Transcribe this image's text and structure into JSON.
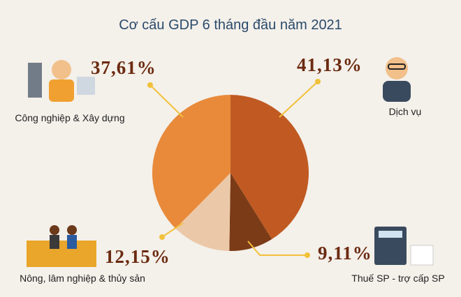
{
  "chart_data": {
    "type": "pie",
    "title": "Cơ cấu GDP 6 tháng đầu năm 2021",
    "categories": [
      "Dịch vụ",
      "Thuế SP - trợ cấp SP",
      "Nông, lâm nghiệp & thủy sản",
      "Công nghiệp & Xây dựng"
    ],
    "values": [
      41.13,
      9.11,
      12.15,
      37.61
    ],
    "value_labels": [
      "41,13%",
      "9,11%",
      "12,15%",
      "37,61%"
    ],
    "colors": [
      "#c05a22",
      "#7b3b17",
      "#ebc8a8",
      "#e88a3a"
    ]
  }
}
